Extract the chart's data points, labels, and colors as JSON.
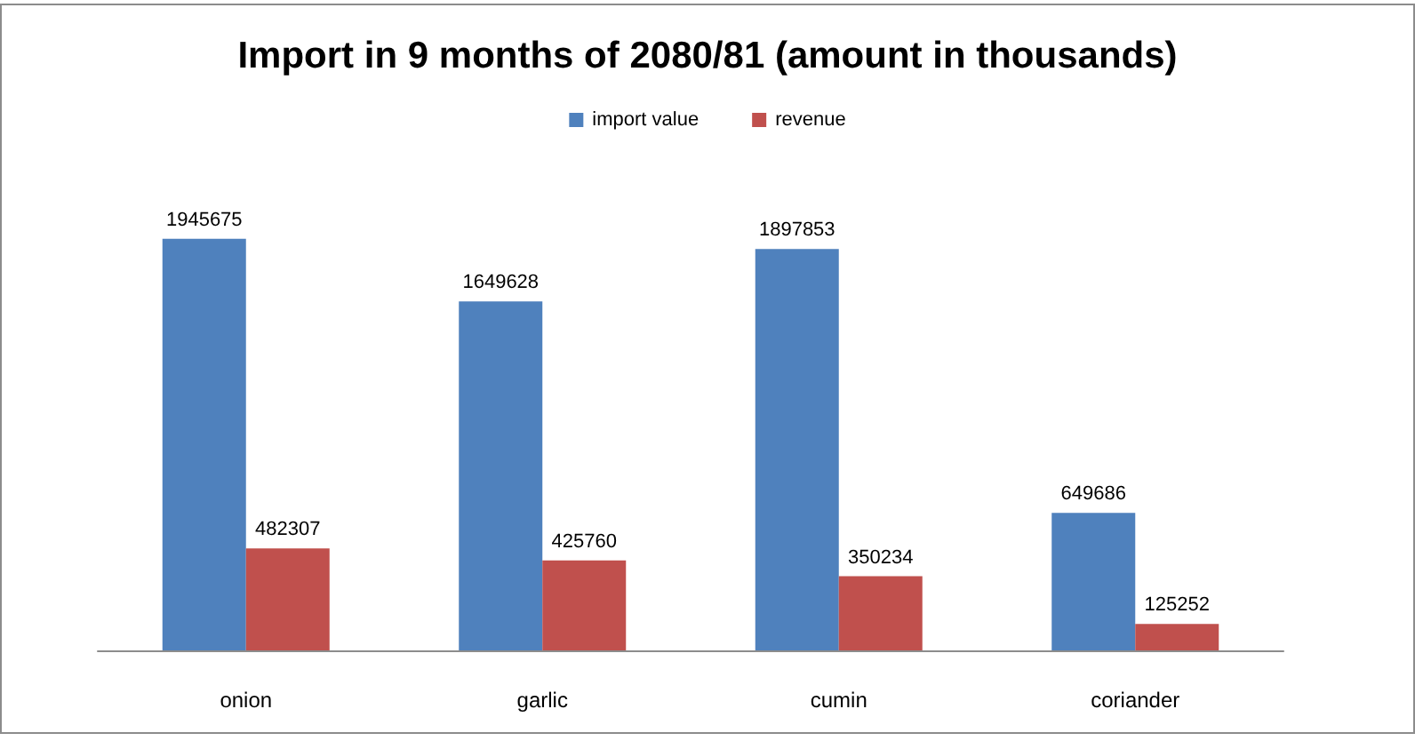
{
  "chart_data": {
    "type": "bar",
    "title": "Import in 9 months of 2080/81 (amount in thousands)",
    "categories": [
      "onion",
      "garlic",
      "cumin",
      "coriander"
    ],
    "series": [
      {
        "name": "import value",
        "color": "#4f81bd",
        "values": [
          1945675,
          1649628,
          1897853,
          649686
        ]
      },
      {
        "name": "revenue",
        "color": "#c0504d",
        "values": [
          482307,
          425760,
          350234,
          125252
        ]
      }
    ],
    "data_labels": true,
    "legend": "top"
  }
}
